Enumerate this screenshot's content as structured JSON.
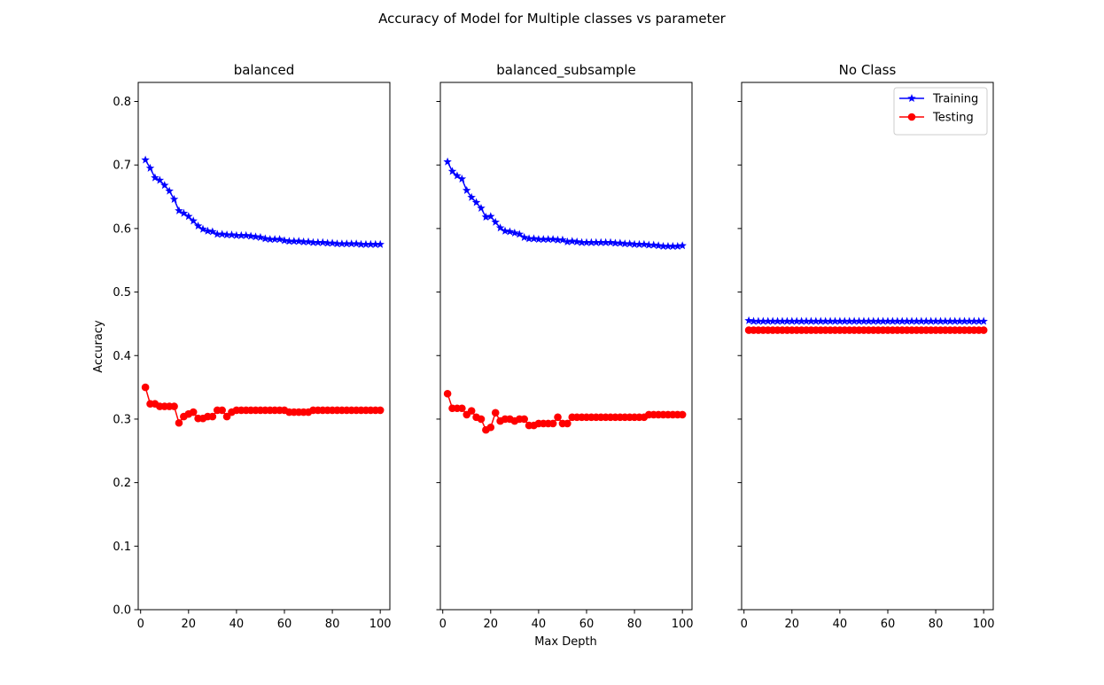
{
  "figure": {
    "suptitle": "Accuracy of Model for Multiple classes vs parameter",
    "xlabel": "Max Depth",
    "ylabel": "Accuracy"
  },
  "legend": {
    "placement": "top-right of third panel",
    "entries": [
      {
        "label": "Training",
        "color": "#0000ff",
        "marker": "star"
      },
      {
        "label": "Testing",
        "color": "#ff0000",
        "marker": "circle"
      }
    ]
  },
  "chart_data": [
    {
      "type": "line",
      "title": "balanced",
      "xlabel": "",
      "ylabel": "Accuracy",
      "xlim": [
        -1,
        104
      ],
      "ylim": [
        0,
        0.83
      ],
      "xticks": [
        0,
        20,
        40,
        60,
        80,
        100
      ],
      "yticks": [
        0.0,
        0.1,
        0.2,
        0.3,
        0.4,
        0.5,
        0.6,
        0.7,
        0.8
      ],
      "show_yticklabels": true,
      "grid": false,
      "series": [
        {
          "name": "Training",
          "color": "#0000ff",
          "marker": "star",
          "x": [
            2,
            4,
            6,
            8,
            10,
            12,
            14,
            16,
            18,
            20,
            22,
            24,
            26,
            28,
            30,
            32,
            34,
            36,
            38,
            40,
            42,
            44,
            46,
            48,
            50,
            52,
            54,
            56,
            58,
            60,
            62,
            64,
            66,
            68,
            70,
            72,
            74,
            76,
            78,
            80,
            82,
            84,
            86,
            88,
            90,
            92,
            94,
            96,
            98,
            100
          ],
          "y": [
            0.708,
            0.695,
            0.68,
            0.676,
            0.668,
            0.659,
            0.646,
            0.628,
            0.624,
            0.619,
            0.612,
            0.604,
            0.599,
            0.596,
            0.595,
            0.591,
            0.591,
            0.59,
            0.59,
            0.589,
            0.589,
            0.589,
            0.588,
            0.587,
            0.586,
            0.584,
            0.583,
            0.583,
            0.583,
            0.581,
            0.58,
            0.58,
            0.58,
            0.579,
            0.579,
            0.578,
            0.578,
            0.578,
            0.577,
            0.577,
            0.576,
            0.576,
            0.576,
            0.576,
            0.576,
            0.575,
            0.575,
            0.575,
            0.575,
            0.575
          ]
        },
        {
          "name": "Testing",
          "color": "#ff0000",
          "marker": "circle",
          "x": [
            2,
            4,
            6,
            8,
            10,
            12,
            14,
            16,
            18,
            20,
            22,
            24,
            26,
            28,
            30,
            32,
            34,
            36,
            38,
            40,
            42,
            44,
            46,
            48,
            50,
            52,
            54,
            56,
            58,
            60,
            62,
            64,
            66,
            68,
            70,
            72,
            74,
            76,
            78,
            80,
            82,
            84,
            86,
            88,
            90,
            92,
            94,
            96,
            98,
            100
          ],
          "y": [
            0.35,
            0.324,
            0.324,
            0.32,
            0.32,
            0.32,
            0.32,
            0.294,
            0.304,
            0.308,
            0.311,
            0.301,
            0.301,
            0.304,
            0.304,
            0.314,
            0.314,
            0.304,
            0.311,
            0.314,
            0.314,
            0.314,
            0.314,
            0.314,
            0.314,
            0.314,
            0.314,
            0.314,
            0.314,
            0.314,
            0.311,
            0.311,
            0.311,
            0.311,
            0.311,
            0.314,
            0.314,
            0.314,
            0.314,
            0.314,
            0.314,
            0.314,
            0.314,
            0.314,
            0.314,
            0.314,
            0.314,
            0.314,
            0.314,
            0.314
          ]
        }
      ]
    },
    {
      "type": "line",
      "title": "balanced_subsample",
      "xlabel": "Max Depth",
      "ylabel": "",
      "xlim": [
        -1,
        104
      ],
      "ylim": [
        0,
        0.83
      ],
      "xticks": [
        0,
        20,
        40,
        60,
        80,
        100
      ],
      "yticks": [
        0.0,
        0.1,
        0.2,
        0.3,
        0.4,
        0.5,
        0.6,
        0.7,
        0.8
      ],
      "show_yticklabels": false,
      "grid": false,
      "series": [
        {
          "name": "Training",
          "color": "#0000ff",
          "marker": "star",
          "x": [
            2,
            4,
            6,
            8,
            10,
            12,
            14,
            16,
            18,
            20,
            22,
            24,
            26,
            28,
            30,
            32,
            34,
            36,
            38,
            40,
            42,
            44,
            46,
            48,
            50,
            52,
            54,
            56,
            58,
            60,
            62,
            64,
            66,
            68,
            70,
            72,
            74,
            76,
            78,
            80,
            82,
            84,
            86,
            88,
            90,
            92,
            94,
            96,
            98,
            100
          ],
          "y": [
            0.705,
            0.69,
            0.683,
            0.678,
            0.66,
            0.649,
            0.641,
            0.632,
            0.618,
            0.619,
            0.61,
            0.601,
            0.596,
            0.595,
            0.593,
            0.591,
            0.586,
            0.584,
            0.584,
            0.583,
            0.583,
            0.583,
            0.583,
            0.582,
            0.582,
            0.579,
            0.58,
            0.579,
            0.578,
            0.578,
            0.578,
            0.578,
            0.578,
            0.578,
            0.578,
            0.577,
            0.577,
            0.576,
            0.576,
            0.575,
            0.575,
            0.575,
            0.574,
            0.574,
            0.573,
            0.572,
            0.572,
            0.572,
            0.572,
            0.573
          ]
        },
        {
          "name": "Testing",
          "color": "#ff0000",
          "marker": "circle",
          "x": [
            2,
            4,
            6,
            8,
            10,
            12,
            14,
            16,
            18,
            20,
            22,
            24,
            26,
            28,
            30,
            32,
            34,
            36,
            38,
            40,
            42,
            44,
            46,
            48,
            50,
            52,
            54,
            56,
            58,
            60,
            62,
            64,
            66,
            68,
            70,
            72,
            74,
            76,
            78,
            80,
            82,
            84,
            86,
            88,
            90,
            92,
            94,
            96,
            98,
            100
          ],
          "y": [
            0.34,
            0.317,
            0.317,
            0.317,
            0.307,
            0.313,
            0.303,
            0.3,
            0.283,
            0.287,
            0.31,
            0.297,
            0.3,
            0.3,
            0.297,
            0.3,
            0.3,
            0.29,
            0.29,
            0.293,
            0.293,
            0.293,
            0.293,
            0.303,
            0.293,
            0.293,
            0.303,
            0.303,
            0.303,
            0.303,
            0.303,
            0.303,
            0.303,
            0.303,
            0.303,
            0.303,
            0.303,
            0.303,
            0.303,
            0.303,
            0.303,
            0.303,
            0.307,
            0.307,
            0.307,
            0.307,
            0.307,
            0.307,
            0.307,
            0.307
          ]
        }
      ]
    },
    {
      "type": "line",
      "title": "No Class",
      "xlabel": "",
      "ylabel": "",
      "xlim": [
        -1,
        104
      ],
      "ylim": [
        0,
        0.83
      ],
      "xticks": [
        0,
        20,
        40,
        60,
        80,
        100
      ],
      "yticks": [
        0.0,
        0.1,
        0.2,
        0.3,
        0.4,
        0.5,
        0.6,
        0.7,
        0.8
      ],
      "show_yticklabels": false,
      "grid": false,
      "legend": true,
      "series": [
        {
          "name": "Training",
          "color": "#0000ff",
          "marker": "star",
          "x": [
            2,
            4,
            6,
            8,
            10,
            12,
            14,
            16,
            18,
            20,
            22,
            24,
            26,
            28,
            30,
            32,
            34,
            36,
            38,
            40,
            42,
            44,
            46,
            48,
            50,
            52,
            54,
            56,
            58,
            60,
            62,
            64,
            66,
            68,
            70,
            72,
            74,
            76,
            78,
            80,
            82,
            84,
            86,
            88,
            90,
            92,
            94,
            96,
            98,
            100
          ],
          "y": [
            0.455,
            0.454,
            0.454,
            0.454,
            0.454,
            0.454,
            0.454,
            0.454,
            0.454,
            0.454,
            0.454,
            0.454,
            0.454,
            0.454,
            0.454,
            0.454,
            0.454,
            0.454,
            0.454,
            0.454,
            0.454,
            0.454,
            0.454,
            0.454,
            0.454,
            0.454,
            0.454,
            0.454,
            0.454,
            0.454,
            0.454,
            0.454,
            0.454,
            0.454,
            0.454,
            0.454,
            0.454,
            0.454,
            0.454,
            0.454,
            0.454,
            0.454,
            0.454,
            0.454,
            0.454,
            0.454,
            0.454,
            0.454,
            0.454,
            0.454
          ]
        },
        {
          "name": "Testing",
          "color": "#ff0000",
          "marker": "circle",
          "x": [
            2,
            4,
            6,
            8,
            10,
            12,
            14,
            16,
            18,
            20,
            22,
            24,
            26,
            28,
            30,
            32,
            34,
            36,
            38,
            40,
            42,
            44,
            46,
            48,
            50,
            52,
            54,
            56,
            58,
            60,
            62,
            64,
            66,
            68,
            70,
            72,
            74,
            76,
            78,
            80,
            82,
            84,
            86,
            88,
            90,
            92,
            94,
            96,
            98,
            100
          ],
          "y": [
            0.44,
            0.44,
            0.44,
            0.44,
            0.44,
            0.44,
            0.44,
            0.44,
            0.44,
            0.44,
            0.44,
            0.44,
            0.44,
            0.44,
            0.44,
            0.44,
            0.44,
            0.44,
            0.44,
            0.44,
            0.44,
            0.44,
            0.44,
            0.44,
            0.44,
            0.44,
            0.44,
            0.44,
            0.44,
            0.44,
            0.44,
            0.44,
            0.44,
            0.44,
            0.44,
            0.44,
            0.44,
            0.44,
            0.44,
            0.44,
            0.44,
            0.44,
            0.44,
            0.44,
            0.44,
            0.44,
            0.44,
            0.44,
            0.44,
            0.44
          ]
        }
      ]
    }
  ]
}
